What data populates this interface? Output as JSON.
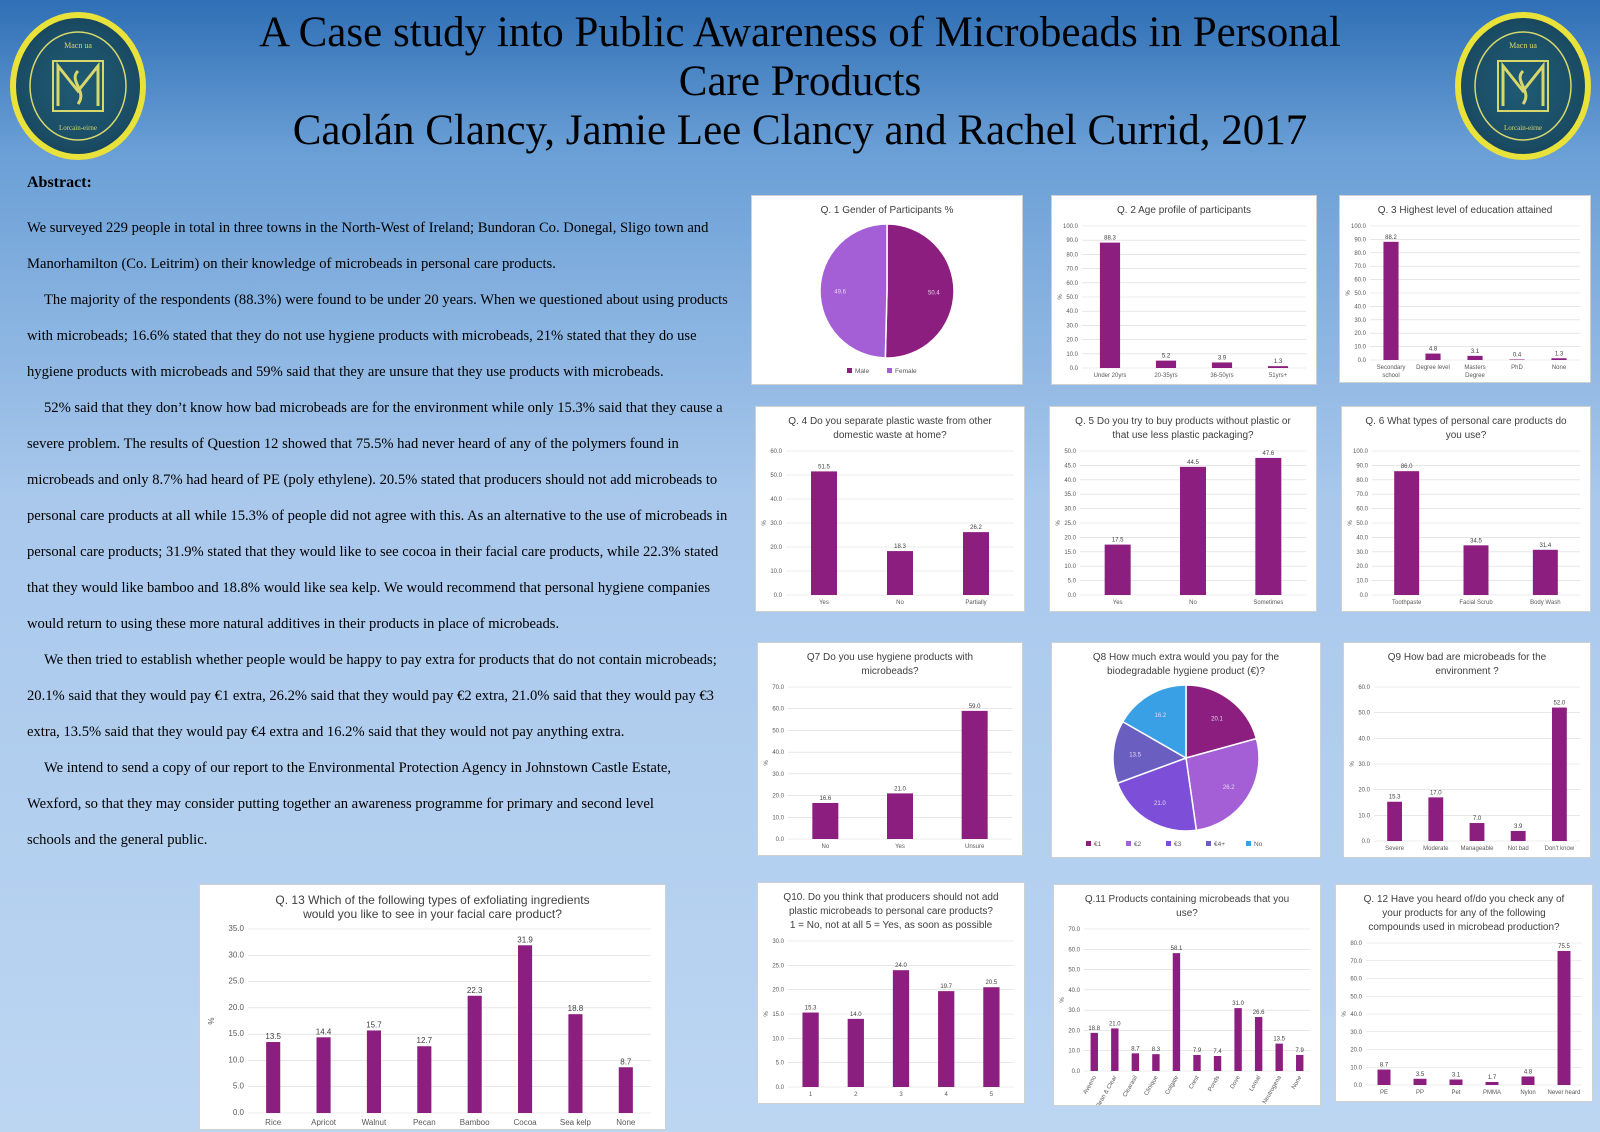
{
  "header": {
    "title_line1": "A Case study into Public Awareness of Microbeads in Personal",
    "title_line2": "Care Products",
    "authors": "Caolán Clancy, Jamie Lee Clancy and Rachel Currid, 2017"
  },
  "logo": {
    "text_top": "Macn ua",
    "text_bottom": "Lorcain-eirne"
  },
  "abstract": {
    "heading": "Abstract:",
    "paragraphs": [
      "We surveyed 229 people in total in three towns in the North-West of Ireland; Bundoran Co. Donegal, Sligo town and Manorhamilton (Co. Leitrim) on their knowledge of microbeads in personal care products.",
      "The majority of the respondents (88.3%) were found to be under 20 years.  When we questioned about using products with microbeads; 16.6% stated that they do not use hygiene products with microbeads, 21% stated that they do use hygiene products with microbeads and 59% said that they are unsure that they use products with microbeads.",
      "52% said that they don’t know how bad microbeads are for the environment while only 15.3% said that they cause a severe problem.  The results of Question 12 showed that 75.5% had never heard of any of the polymers found in microbeads and only 8.7% had heard of PE (poly ethylene).  20.5% stated that producers should not add microbeads to personal care products at all while 15.3% of people did not agree with this.  As an alternative to the use of microbeads in personal care products; 31.9% stated that they would like to see cocoa in their facial care products, while 22.3% stated that they would like bamboo and 18.8% would like sea kelp.  We would recommend that personal hygiene companies would return to using these more natural additives in their products in place of microbeads.",
      "We then tried to establish whether people would be happy to pay extra for products that do not contain microbeads; 20.1% said that they would pay €1 extra, 26.2% said that they would pay €2 extra, 21.0% said that they would pay €3 extra, 13.5% said that they would pay €4 extra and 16.2% said that they would not pay anything extra.",
      "We intend to send a copy of our report to the Environmental Protection Agency in Johnstown Castle Estate, Wexford, so that they may consider putting together an awareness programme for primary and second level schools and the general public."
    ]
  },
  "chart_data": [
    {
      "id": "q1",
      "type": "pie",
      "title": "Q. 1 Gender of Participants %",
      "categories": [
        "Male",
        "Female"
      ],
      "values": [
        50.4,
        49.6
      ],
      "colors": [
        "#8b1e7e",
        "#a45ed6"
      ],
      "legend": "bottom"
    },
    {
      "id": "q2",
      "type": "bar",
      "title": "Q. 2 Age profile of participants",
      "categories": [
        "Under 20yrs",
        "20-35yrs",
        "36-50yrs",
        "51yrs+"
      ],
      "values": [
        88.3,
        5.2,
        3.9,
        1.3
      ],
      "ylim": [
        0,
        100
      ],
      "ystep": 10,
      "ylabel": "%",
      "color": "#8b1e7e"
    },
    {
      "id": "q3",
      "type": "bar",
      "title": "Q. 3 Highest level of education attained",
      "categories": [
        "Secondary school",
        "Degree level",
        "Masters Degree",
        "PhD",
        "None"
      ],
      "values": [
        88.2,
        4.8,
        3.1,
        0.4,
        1.3
      ],
      "ylim": [
        0,
        100
      ],
      "ystep": 10,
      "ylabel": "%",
      "color": "#8b1e7e"
    },
    {
      "id": "q4",
      "type": "bar",
      "title": "Q. 4 Do you separate plastic waste from other domestic waste at home?",
      "categories": [
        "Yes",
        "No",
        "Partially"
      ],
      "values": [
        51.5,
        18.3,
        26.2
      ],
      "ylim": [
        0,
        60
      ],
      "ystep": 10,
      "ylabel": "%",
      "color": "#8b1e7e"
    },
    {
      "id": "q5",
      "type": "bar",
      "title": "Q. 5 Do you try to buy products without plastic or that use less plastic packaging?",
      "categories": [
        "Yes",
        "No",
        "Sometimes"
      ],
      "values": [
        17.5,
        44.5,
        47.6
      ],
      "ylim": [
        0,
        50
      ],
      "ystep": 5,
      "ylabel": "%",
      "color": "#8b1e7e"
    },
    {
      "id": "q6",
      "type": "bar",
      "title": "Q. 6 What types of personal care products do you use?",
      "categories": [
        "Toothpaste",
        "Facial Scrub",
        "Body Wash"
      ],
      "values": [
        86.0,
        34.5,
        31.4
      ],
      "ylim": [
        0,
        100
      ],
      "ystep": 10,
      "ylabel": "%",
      "color": "#8b1e7e"
    },
    {
      "id": "q7",
      "type": "bar",
      "title": "Q7 Do you use hygiene products with microbeads?",
      "categories": [
        "No",
        "Yes",
        "Unsure"
      ],
      "values": [
        16.6,
        21.0,
        59.0
      ],
      "ylim": [
        0,
        70
      ],
      "ystep": 10,
      "ylabel": "%",
      "color": "#8b1e7e"
    },
    {
      "id": "q8",
      "type": "pie",
      "title": "Q8 How much extra would you pay for the biodegradable hygiene product (€)?",
      "categories": [
        "€1",
        "€2",
        "€3",
        "€4+",
        "No"
      ],
      "values": [
        20.1,
        26.2,
        21.0,
        13.5,
        16.2
      ],
      "colors": [
        "#8b1e7e",
        "#a45ed6",
        "#7d4fd8",
        "#6a5fc0",
        "#3aa0e6"
      ],
      "legend": "bottom"
    },
    {
      "id": "q9",
      "type": "bar",
      "title": "Q9 How bad are microbeads for the environment ?",
      "categories": [
        "Severe",
        "Moderate",
        "Manageable",
        "Not bad",
        "Don't know"
      ],
      "values": [
        15.3,
        17.0,
        7.0,
        3.9,
        52.0
      ],
      "ylim": [
        0,
        60
      ],
      "ystep": 10,
      "ylabel": "%",
      "color": "#8b1e7e"
    },
    {
      "id": "q10",
      "type": "bar",
      "title": "Q10. Do you think that producers should not add plastic microbeads to personal care products?",
      "subtitle": "1 = No, not at all   5 = Yes, as soon as possible",
      "categories": [
        "1",
        "2",
        "3",
        "4",
        "5"
      ],
      "values": [
        15.3,
        14.0,
        24.0,
        19.7,
        20.5
      ],
      "ylim": [
        0,
        30
      ],
      "ystep": 5,
      "ylabel": "%",
      "color": "#8b1e7e"
    },
    {
      "id": "q11",
      "type": "bar",
      "title": "Q.11  Products containing microbeads that you use?",
      "categories": [
        "Aveeno",
        "Clean & Clear",
        "Clearasil",
        "Clinique",
        "Colgate",
        "Crest",
        "Ponds",
        "Dove",
        "Loreal",
        "Neutrogena",
        "None"
      ],
      "values": [
        18.8,
        21.0,
        8.7,
        8.3,
        58.1,
        7.9,
        7.4,
        31.0,
        26.6,
        13.5,
        7.9
      ],
      "ylim": [
        0,
        70
      ],
      "ystep": 10,
      "ylabel": "%",
      "color": "#8b1e7e",
      "rotate_labels": true
    },
    {
      "id": "q12",
      "type": "bar",
      "title": "Q. 12  Have you heard of/do you check any of your products for any of the following compounds used in microbead production?",
      "categories": [
        "PE",
        "PP",
        "Pet",
        "PMMA",
        "Nylon",
        "Never heard"
      ],
      "values": [
        8.7,
        3.5,
        3.1,
        1.7,
        4.8,
        75.5
      ],
      "ylim": [
        0,
        80
      ],
      "ystep": 10,
      "ylabel": "%",
      "color": "#8b1e7e"
    },
    {
      "id": "q13",
      "type": "bar",
      "title": "Q. 13  Which of the following types of exfoliating ingredients would you like to see in your facial care product?",
      "categories": [
        "Rice",
        "Apricot",
        "Walnut",
        "Pecan",
        "Bamboo",
        "Cocoa",
        "Sea kelp",
        "None"
      ],
      "values": [
        13.5,
        14.4,
        15.7,
        12.7,
        22.3,
        31.9,
        18.8,
        8.7
      ],
      "ylim": [
        0,
        35
      ],
      "ystep": 5,
      "ylabel": "%",
      "color": "#8b1e7e"
    }
  ]
}
